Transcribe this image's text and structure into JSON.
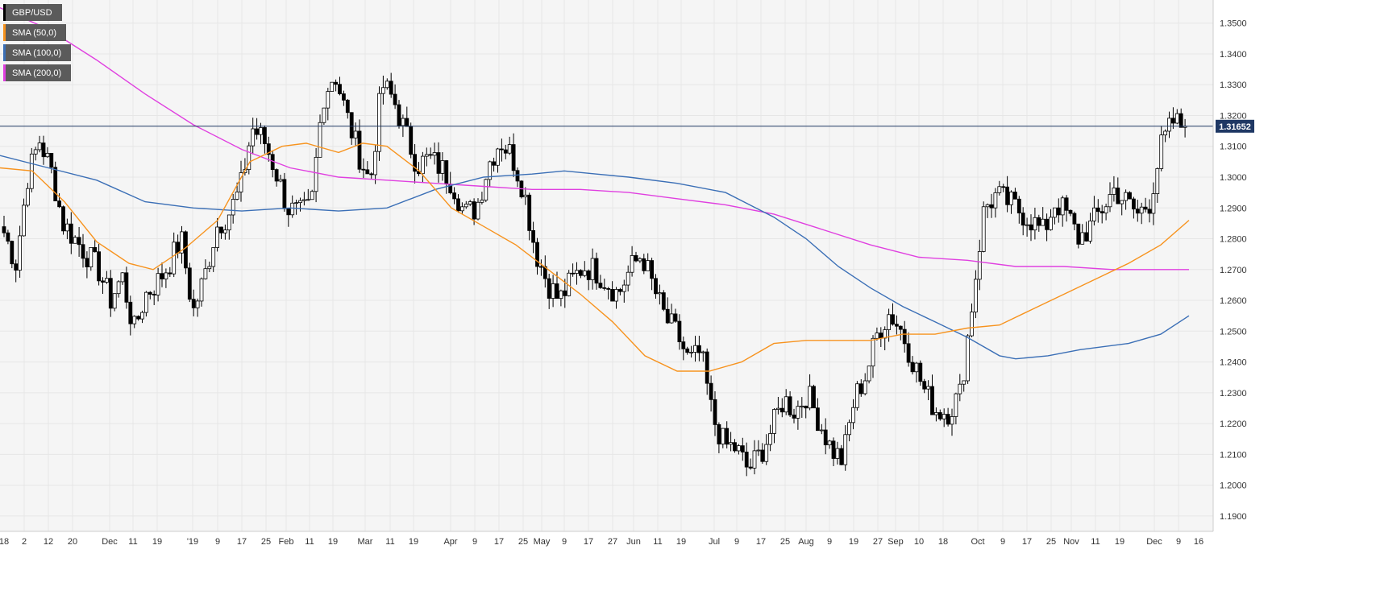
{
  "legend": [
    {
      "label": "GBP/USD",
      "color": "#000000"
    },
    {
      "label": "SMA (50,0)",
      "color": "#f7931e"
    },
    {
      "label": "SMA (100,0)",
      "color": "#3b6fb6"
    },
    {
      "label": "SMA (200,0)",
      "color": "#e040e0"
    }
  ],
  "current_price_label": "1.31652",
  "colors": {
    "up": "#ffffff",
    "down": "#000000",
    "grid": "#e6e6e6",
    "price_line": "#1f3864",
    "sma50": "#f7931e",
    "sma100": "#3b6fb6",
    "sma200": "#e040e0"
  },
  "chart_data": {
    "type": "candlestick",
    "title": "GBP/USD",
    "ylim": [
      1.185,
      1.3575
    ],
    "y_ticks": [
      "1.3500",
      "1.3400",
      "1.3300",
      "1.3200",
      "1.3100",
      "1.3000",
      "1.2900",
      "1.2800",
      "1.2700",
      "1.2600",
      "1.2500",
      "1.2400",
      "1.2300",
      "1.2200",
      "1.2100",
      "1.2000",
      "1.1900"
    ],
    "x_ticks": [
      "'18",
      "2",
      "12",
      "20",
      "Dec",
      "11",
      "19",
      "'19",
      "9",
      "17",
      "25",
      "Feb",
      "11",
      "19",
      "Mar",
      "11",
      "19",
      "Apr",
      "9",
      "17",
      "25",
      "May",
      "9",
      "17",
      "27",
      "Jun",
      "11",
      "19",
      "Jul",
      "9",
      "17",
      "25",
      "Aug",
      "9",
      "19",
      "27",
      "Sep",
      "10",
      "18",
      "Oct",
      "9",
      "17",
      "25",
      "Nov",
      "11",
      "19",
      "Dec",
      "9",
      "16"
    ],
    "current_price": 1.31652,
    "anchors": [
      1.282,
      1.272,
      1.3,
      1.312,
      1.302,
      1.285,
      1.28,
      1.275,
      1.27,
      1.26,
      1.268,
      1.25,
      1.262,
      1.266,
      1.272,
      1.28,
      1.256,
      1.268,
      1.284,
      1.288,
      1.296,
      1.316,
      1.312,
      1.302,
      1.29,
      1.288,
      1.29,
      1.326,
      1.334,
      1.32,
      1.308,
      1.298,
      1.33,
      1.325,
      1.314,
      1.304,
      1.306,
      1.303,
      1.298,
      1.288,
      1.29,
      1.304,
      1.312,
      1.307,
      1.296,
      1.276,
      1.266,
      1.26,
      1.266,
      1.271,
      1.27,
      1.266,
      1.262,
      1.27,
      1.275,
      1.264,
      1.254,
      1.249,
      1.24,
      1.243,
      1.222,
      1.213,
      1.212,
      1.205,
      1.21,
      1.218,
      1.228,
      1.224,
      1.23,
      1.221,
      1.212,
      1.208,
      1.228,
      1.236,
      1.25,
      1.256,
      1.25,
      1.24,
      1.23,
      1.224,
      1.224,
      1.23,
      1.26,
      1.29,
      1.294,
      1.292,
      1.289,
      1.286,
      1.282,
      1.292,
      1.288,
      1.28,
      1.284,
      1.29,
      1.296,
      1.292,
      1.288,
      1.292,
      1.31,
      1.318,
      1.316
    ],
    "sma50": [
      [
        0,
        1.303
      ],
      [
        40,
        1.302
      ],
      [
        80,
        1.292
      ],
      [
        120,
        1.279
      ],
      [
        160,
        1.272
      ],
      [
        190,
        1.27
      ],
      [
        230,
        1.277
      ],
      [
        270,
        1.286
      ],
      [
        310,
        1.305
      ],
      [
        350,
        1.31
      ],
      [
        380,
        1.311
      ],
      [
        420,
        1.308
      ],
      [
        450,
        1.311
      ],
      [
        480,
        1.31
      ],
      [
        520,
        1.302
      ],
      [
        560,
        1.29
      ],
      [
        600,
        1.284
      ],
      [
        640,
        1.278
      ],
      [
        680,
        1.27
      ],
      [
        720,
        1.262
      ],
      [
        760,
        1.253
      ],
      [
        800,
        1.242
      ],
      [
        840,
        1.237
      ],
      [
        880,
        1.237
      ],
      [
        920,
        1.24
      ],
      [
        960,
        1.246
      ],
      [
        1000,
        1.247
      ],
      [
        1040,
        1.247
      ],
      [
        1080,
        1.247
      ],
      [
        1120,
        1.249
      ],
      [
        1160,
        1.249
      ],
      [
        1200,
        1.251
      ],
      [
        1240,
        1.252
      ],
      [
        1280,
        1.257
      ],
      [
        1320,
        1.262
      ],
      [
        1360,
        1.267
      ],
      [
        1400,
        1.272
      ],
      [
        1440,
        1.278
      ],
      [
        1475,
        1.286
      ]
    ],
    "sma100": [
      [
        0,
        1.307
      ],
      [
        60,
        1.303
      ],
      [
        120,
        1.299
      ],
      [
        180,
        1.292
      ],
      [
        240,
        1.29
      ],
      [
        300,
        1.289
      ],
      [
        360,
        1.29
      ],
      [
        420,
        1.289
      ],
      [
        480,
        1.29
      ],
      [
        540,
        1.296
      ],
      [
        600,
        1.3
      ],
      [
        660,
        1.301
      ],
      [
        700,
        1.302
      ],
      [
        740,
        1.301
      ],
      [
        780,
        1.3
      ],
      [
        840,
        1.298
      ],
      [
        900,
        1.295
      ],
      [
        960,
        1.287
      ],
      [
        1000,
        1.28
      ],
      [
        1040,
        1.271
      ],
      [
        1080,
        1.264
      ],
      [
        1120,
        1.258
      ],
      [
        1160,
        1.253
      ],
      [
        1200,
        1.248
      ],
      [
        1240,
        1.242
      ],
      [
        1260,
        1.241
      ],
      [
        1300,
        1.242
      ],
      [
        1340,
        1.244
      ],
      [
        1400,
        1.246
      ],
      [
        1440,
        1.249
      ],
      [
        1475,
        1.255
      ]
    ],
    "sma200": [
      [
        0,
        1.355
      ],
      [
        60,
        1.348
      ],
      [
        120,
        1.338
      ],
      [
        180,
        1.327
      ],
      [
        240,
        1.317
      ],
      [
        300,
        1.309
      ],
      [
        360,
        1.303
      ],
      [
        420,
        1.3
      ],
      [
        480,
        1.299
      ],
      [
        540,
        1.298
      ],
      [
        600,
        1.297
      ],
      [
        660,
        1.296
      ],
      [
        720,
        1.296
      ],
      [
        780,
        1.295
      ],
      [
        840,
        1.293
      ],
      [
        900,
        1.291
      ],
      [
        960,
        1.288
      ],
      [
        1020,
        1.283
      ],
      [
        1080,
        1.278
      ],
      [
        1140,
        1.274
      ],
      [
        1200,
        1.273
      ],
      [
        1260,
        1.271
      ],
      [
        1320,
        1.271
      ],
      [
        1380,
        1.27
      ],
      [
        1440,
        1.27
      ],
      [
        1475,
        1.27
      ]
    ]
  }
}
